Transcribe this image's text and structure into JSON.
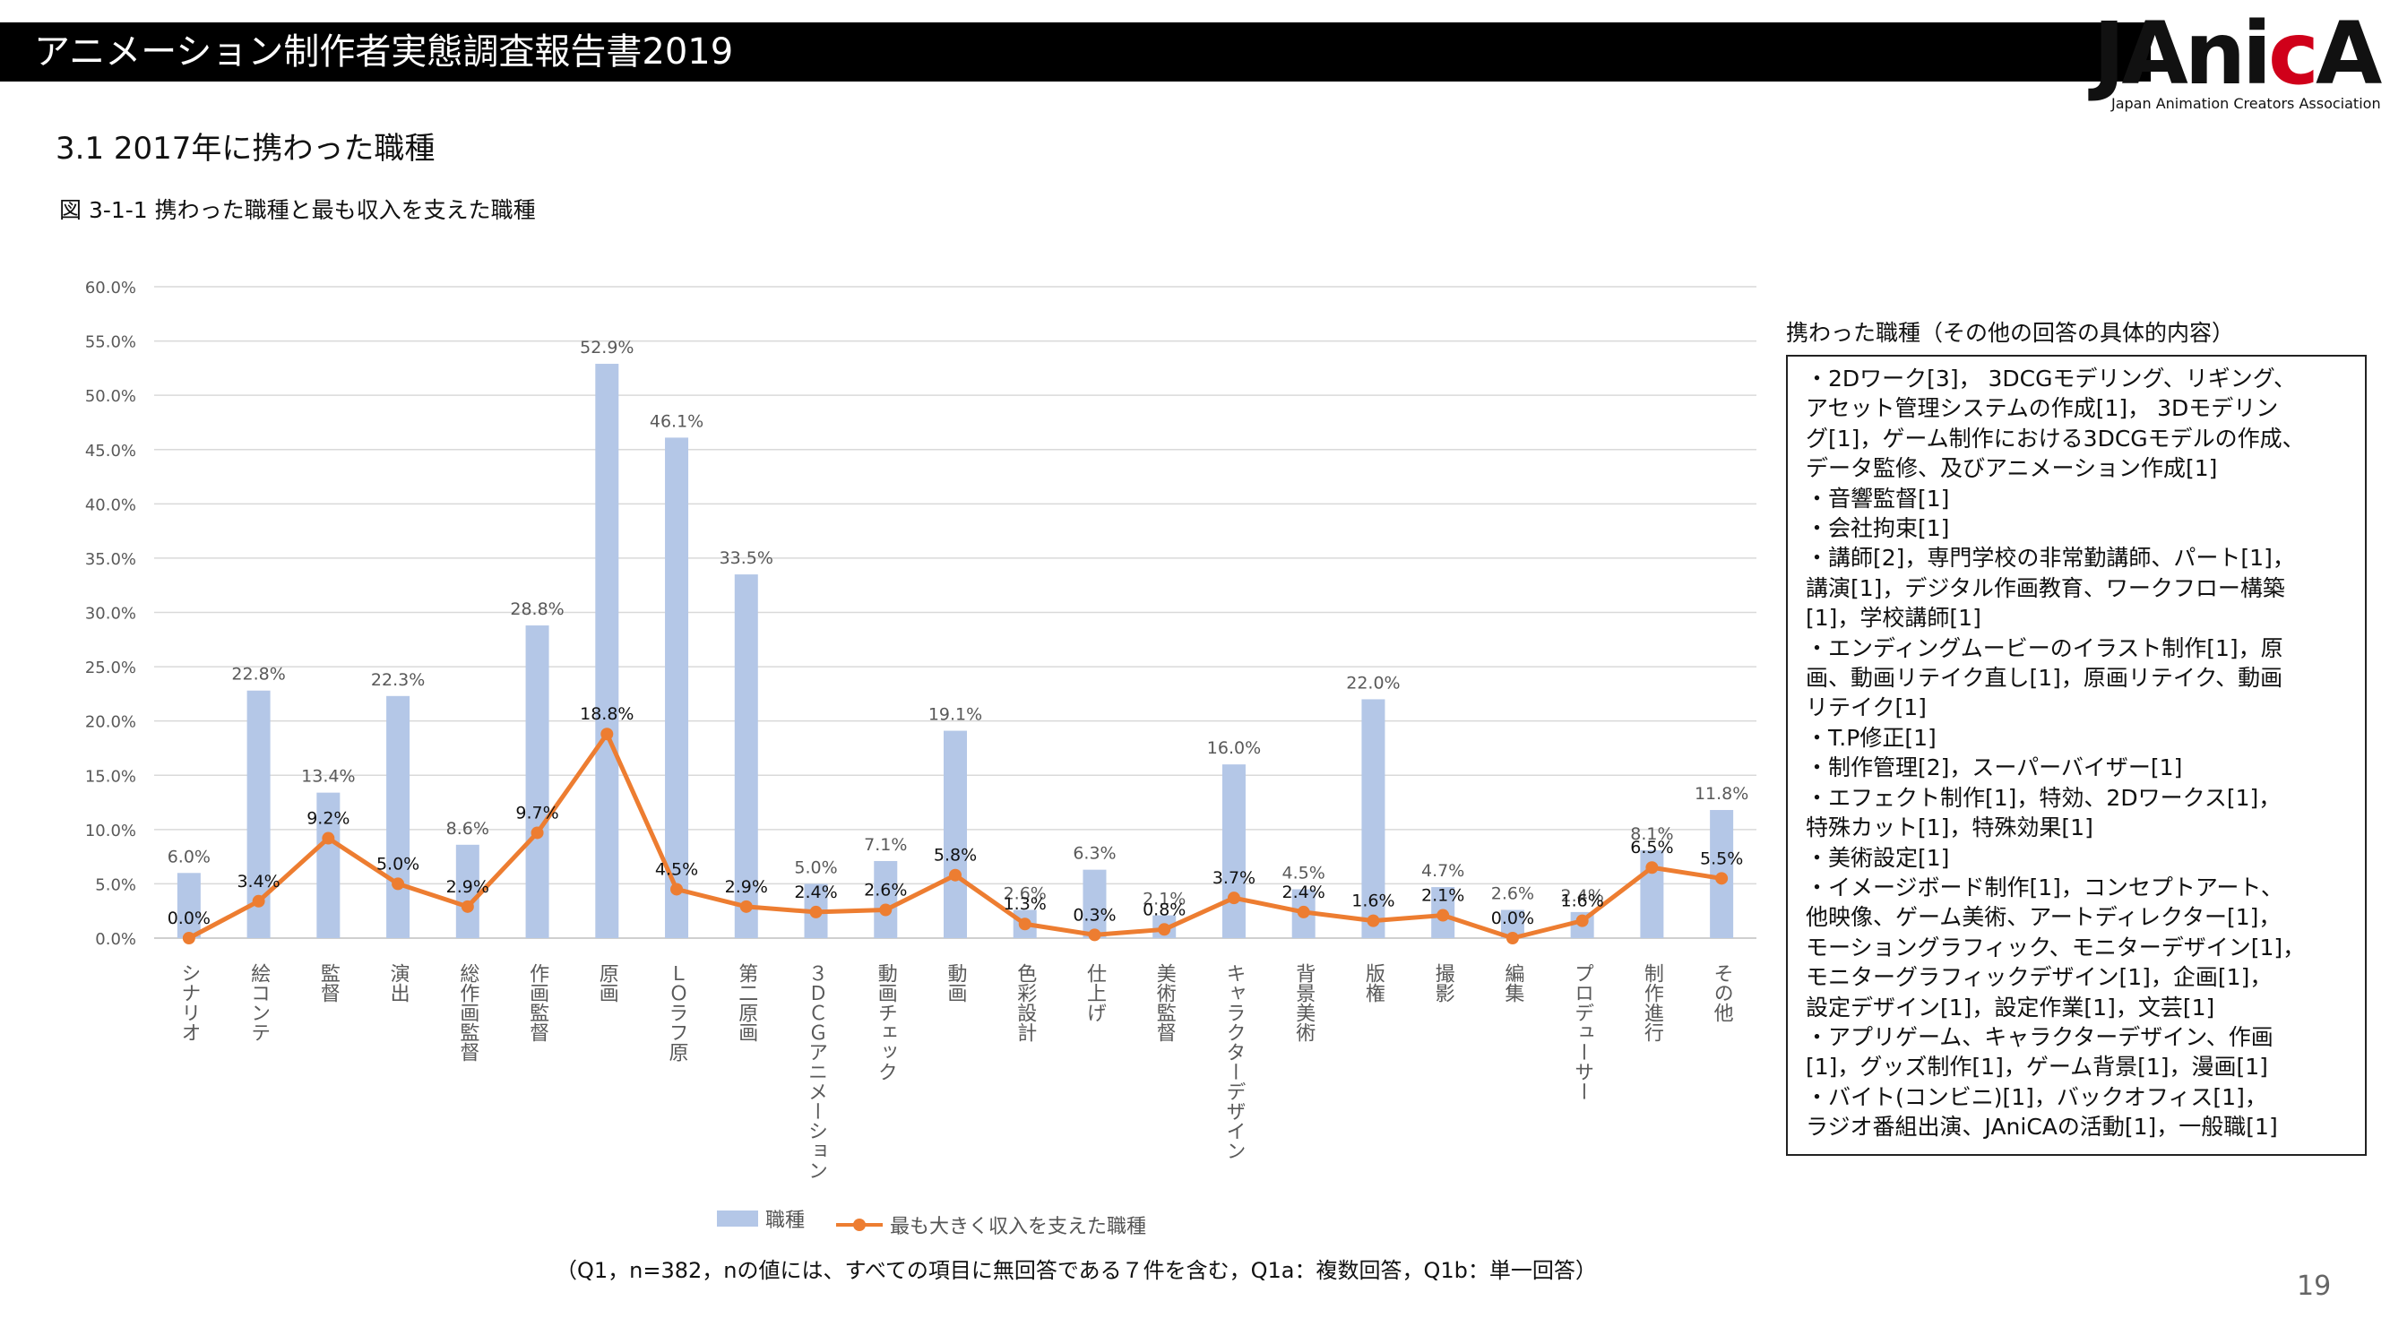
{
  "header": {
    "title": "アニメーション制作者実態調査報告書2019"
  },
  "logo": {
    "mark": "JAnicA",
    "subtitle": "Japan Animation Creators Association"
  },
  "section": {
    "title": "3.1  2017年に携わった職種"
  },
  "figure": {
    "title": "図 3-1-1  携わった職種と最も収入を支えた職種"
  },
  "chart_data": {
    "type": "bar",
    "categories": [
      "シナリオ",
      "絵コンテ",
      "監督",
      "演出",
      "総作画監督",
      "作画監督",
      "原画",
      "ＬＯラフ原",
      "第二原画",
      "３ＤＣＧアニメーション",
      "動画チェック",
      "動画",
      "色彩設計",
      "仕上げ",
      "美術監督",
      "キャラクターデザイン",
      "背景美術",
      "版権",
      "撮影",
      "編集",
      "プロデューサー",
      "制作進行",
      "その他"
    ],
    "series": [
      {
        "name": "職種",
        "kind": "bar",
        "color": "#b4c7e7",
        "values": [
          6.0,
          22.8,
          13.4,
          22.3,
          8.6,
          28.8,
          52.9,
          46.1,
          33.5,
          5.0,
          7.1,
          19.1,
          2.6,
          6.3,
          2.1,
          16.0,
          4.5,
          22.0,
          4.7,
          2.6,
          2.4,
          8.1,
          11.8
        ],
        "labels": [
          "6.0%",
          "22.8%",
          "13.4%",
          "22.3%",
          "8.6%",
          "28.8%",
          "52.9%",
          "46.1%",
          "33.5%",
          "5.0%",
          "7.1%",
          "19.1%",
          "2.6%",
          "6.3%",
          "2.1%",
          "16.0%",
          "4.5%",
          "22.0%",
          "4.7%",
          "2.6%",
          "2.4%",
          "8.1%",
          "11.8%"
        ]
      },
      {
        "name": "最も大きく収入を支えた職種",
        "kind": "line",
        "color": "#ed7d31",
        "values": [
          0.0,
          3.4,
          9.2,
          5.0,
          2.9,
          9.7,
          18.8,
          4.5,
          2.9,
          2.4,
          2.6,
          5.8,
          1.3,
          0.3,
          0.8,
          3.7,
          2.4,
          1.6,
          2.1,
          0.0,
          1.6,
          6.5,
          5.5
        ],
        "labels": [
          "0.0%",
          "3.4%",
          "9.2%",
          "5.0%",
          "2.9%",
          "9.7%",
          "18.8%",
          "4.5%",
          "2.9%",
          "2.4%",
          "2.6%",
          "5.8%",
          "1.3%",
          "0.3%",
          "0.8%",
          "3.7%",
          "2.4%",
          "1.6%",
          "2.1%",
          "0.0%",
          "1.6%",
          "6.5%",
          "5.5%"
        ]
      }
    ],
    "y_ticks": [
      "0.0%",
      "5.0%",
      "10.0%",
      "15.0%",
      "20.0%",
      "25.0%",
      "30.0%",
      "35.0%",
      "40.0%",
      "45.0%",
      "50.0%",
      "55.0%",
      "60.0%"
    ],
    "ylim": [
      0,
      60
    ],
    "grid": true,
    "legend": "bottom"
  },
  "side_panel": {
    "title": "携わった職種（その他の回答の具体的内容）",
    "lines": [
      "・2Dワーク[3]， 3DCGモデリング、リギング、",
      "アセット管理システムの作成[1]， 3Dモデリン",
      "グ[1]，ゲーム制作における3DCGモデルの作成、",
      "データ監修、及びアニメーション作成[1]",
      "・音響監督[1]",
      "・会社拘束[1]",
      "・講師[2]，専門学校の非常勤講師、パート[1]，",
      "講演[1]，デジタル作画教育、ワークフロー構築",
      "[1]，学校講師[1]",
      "・エンディングムービーのイラスト制作[1]，原",
      "画、動画リテイク直し[1]，原画リテイク、動画",
      "リテイク[1]",
      "・T.P修正[1]",
      "・制作管理[2]，スーパーバイザー[1]",
      "・エフェクト制作[1]，特効、2Dワークス[1]，",
      "特殊カット[1]，特殊効果[1]",
      "・美術設定[1]",
      "・イメージボード制作[1]，コンセプトアート、",
      "他映像、ゲーム美術、アートディレクター[1]，",
      "モーショングラフィック、モニターデザイン[1]，",
      "モニターグラフィックデザイン[1]，企画[1]，",
      "設定デザイン[1]，設定作業[1]，文芸[1]",
      "・アプリゲーム、キャラクターデザイン、作画",
      "[1]，グッズ制作[1]，ゲーム背景[1]，漫画[1]",
      "・バイト(コンビニ)[1]，バックオフィス[1]，",
      "ラジオ番組出演、JAniCAの活動[1]，一般職[1]"
    ]
  },
  "footnote": "（Q1，n=382，nの値には、すべての項目に無回答である７件を含む，Q1a：複数回答，Q1b：単一回答）",
  "page_number": "19"
}
